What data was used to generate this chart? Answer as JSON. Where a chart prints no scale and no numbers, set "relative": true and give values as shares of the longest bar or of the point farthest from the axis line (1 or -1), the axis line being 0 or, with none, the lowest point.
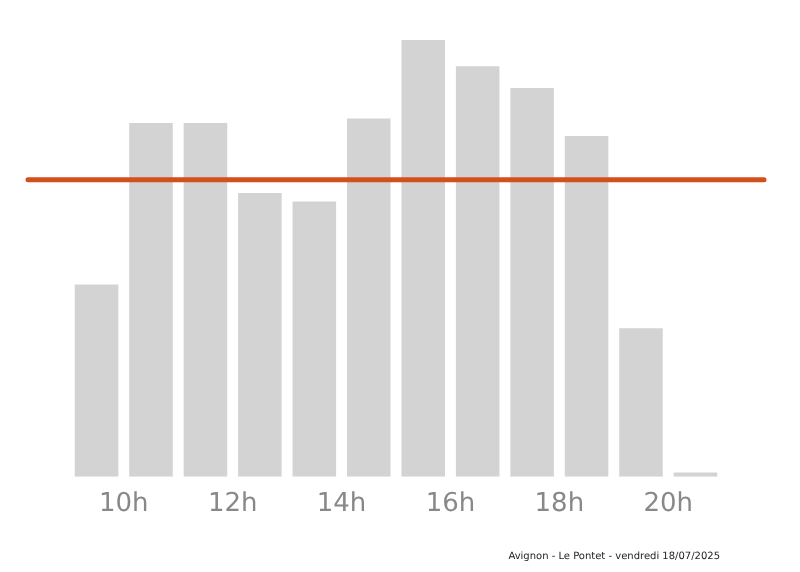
{
  "chart_data": {
    "type": "bar",
    "relative": true,
    "x": [
      9.5,
      10.5,
      11.5,
      12.5,
      13.5,
      14.5,
      15.5,
      16.5,
      17.5,
      18.5,
      19.5,
      20.5
    ],
    "values": [
      0.44,
      0.81,
      0.81,
      0.65,
      0.63,
      0.82,
      1,
      0.94,
      0.89,
      0.78,
      0.34,
      0.01
    ],
    "color": "#d3d3d3",
    "xlim": [
      9,
      21
    ],
    "xticks": [
      {
        "value": 10,
        "label": "10h"
      },
      {
        "value": 12,
        "label": "12h"
      },
      {
        "value": 14,
        "label": "14h"
      },
      {
        "value": 16,
        "label": "16h"
      },
      {
        "value": 18,
        "label": "18h"
      },
      {
        "value": 20,
        "label": "20h"
      }
    ],
    "ref_lines": [
      {
        "axis": "y",
        "value": 0.68,
        "color": "#d2501e"
      }
    ],
    "grid": false,
    "legend": false,
    "annotations": [
      "Avignon - Le Pontet - vendredi 18/07/2025"
    ]
  }
}
